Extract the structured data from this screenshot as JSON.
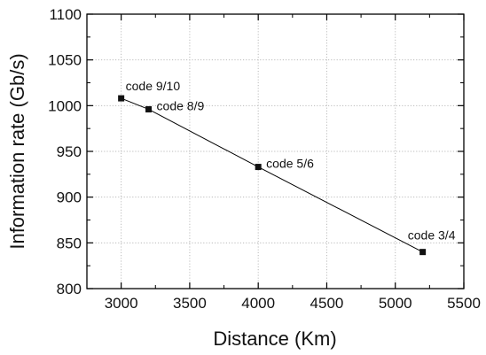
{
  "chart_data": {
    "type": "scatter",
    "title": "",
    "xlabel": "Distance (Km)",
    "ylabel": "Information rate (Gb/s)",
    "xlim": [
      2750,
      5500
    ],
    "ylim": [
      800,
      1100
    ],
    "xticks": [
      3000,
      3500,
      4000,
      4500,
      5000,
      5500
    ],
    "yticks": [
      800,
      850,
      900,
      950,
      1000,
      1050,
      1100
    ],
    "grid": true,
    "grid_style": "dotted",
    "legend": "none",
    "colors": {
      "line": "#000000",
      "marker": "#111111",
      "grid": "#bbbbbb",
      "axis": "#000000"
    },
    "series": [
      {
        "x": [
          3000,
          3200,
          4000,
          5200
        ],
        "y": [
          1008,
          996,
          933,
          840
        ],
        "markers": "square",
        "connect": true
      }
    ],
    "annotations": [
      {
        "text": "code 9/10",
        "x": 3000,
        "y": 1008,
        "placement": "above-right"
      },
      {
        "text": "code 8/9",
        "x": 3200,
        "y": 996,
        "placement": "right"
      },
      {
        "text": "code 5/6",
        "x": 4000,
        "y": 933,
        "placement": "right"
      },
      {
        "text": "code 3/4",
        "x": 5200,
        "y": 840,
        "placement": "above"
      }
    ]
  }
}
